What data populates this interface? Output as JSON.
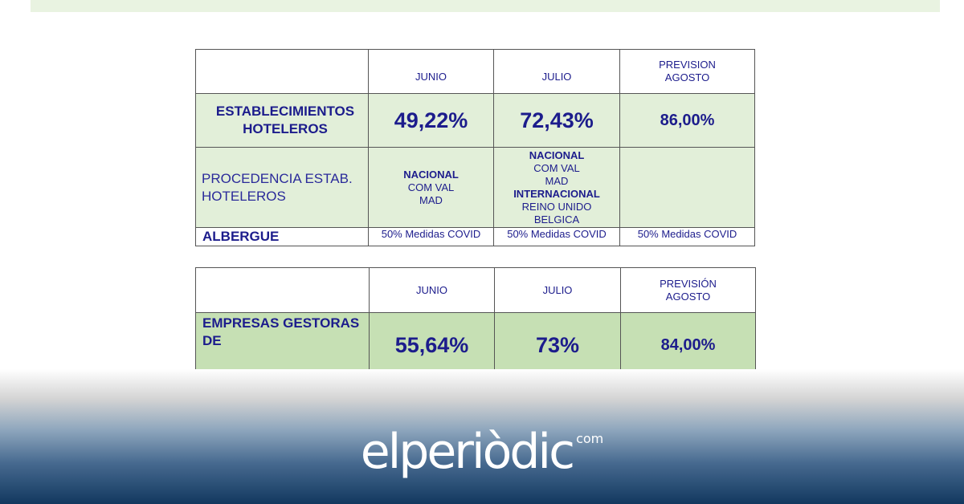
{
  "table1": {
    "headers": [
      "",
      "JUNIO",
      "JULIO",
      "PREVISION\nAGOSTO"
    ],
    "row1": {
      "label": "ESTABLECIMIENTOS HOTELEROS",
      "values": [
        "49,22%",
        "72,43%",
        "86,00%"
      ]
    },
    "row2": {
      "label": "PROCEDENCIA ESTAB. HOTELEROS",
      "junio": {
        "h1": "NACIONAL",
        "l1": "COM VAL",
        "l2": "MAD"
      },
      "julio": {
        "h1": "NACIONAL",
        "l1": "COM VAL",
        "l2": "MAD",
        "h2": "INTERNACIONAL",
        "l3": "REINO UNIDO",
        "l4": "BELGICA"
      },
      "agosto": ""
    },
    "row3": {
      "label": "ALBERGUE",
      "values": [
        "50% Medidas COVID",
        "50% Medidas COVID",
        "50% Medidas COVID"
      ]
    }
  },
  "table2": {
    "headers": [
      "",
      "JUNIO",
      "JULIO",
      "PREVISIÓN\nAGOSTO"
    ],
    "row1": {
      "label": "EMPRESAS GESTORAS DE",
      "values": [
        "55,64%",
        "73%",
        "84,00%"
      ]
    }
  },
  "brand": {
    "name": "elperiòdic",
    "suffix": "com"
  }
}
